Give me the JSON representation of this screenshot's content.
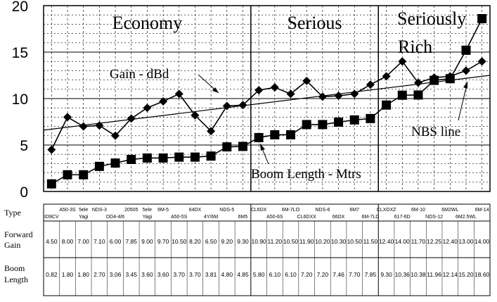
{
  "chart_data": {
    "type": "line",
    "ylim": [
      0,
      20
    ],
    "yticks": [
      "0",
      "5",
      "10",
      "15",
      "20"
    ],
    "bands": [
      {
        "label": "Economy",
        "from": 0,
        "to": 13
      },
      {
        "label": "Serious",
        "from": 13,
        "to": 21
      },
      {
        "label": "Seriously Rich",
        "from": 21,
        "to": 26
      }
    ],
    "band_label_lines": {
      "rich_1": "Seriously",
      "rich_2": "Rich"
    },
    "annotations": {
      "gain": "Gain - dBd",
      "boom": "Boom Length - Mtrs",
      "nbs": "NBS line"
    },
    "table_headers": {
      "type": "Type",
      "gain_1": "Forward",
      "gain_2": "Gain",
      "boom_1": "Boom",
      "boom_2": "Length"
    },
    "types": [
      {
        "top": "",
        "bottom": "ID9CV"
      },
      {
        "top": "A50-3S",
        "bottom": ""
      },
      {
        "top": "5ele",
        "bottom": "Yagi"
      },
      {
        "top": "NDS-3",
        "bottom": ""
      },
      {
        "top": "",
        "bottom": "DD4-4/6"
      },
      {
        "top": "20505",
        "bottom": ""
      },
      {
        "top": "5ele",
        "bottom": "Yagi"
      },
      {
        "top": "6M-5",
        "bottom": ""
      },
      {
        "top": "",
        "bottom": "A50-5S"
      },
      {
        "top": "64DX",
        "bottom": ""
      },
      {
        "top": "",
        "bottom": "4Y/6M"
      },
      {
        "top": "NDS-5",
        "bottom": ""
      },
      {
        "top": "",
        "bottom": "6M5"
      },
      {
        "top": "CL6DX",
        "bottom": ""
      },
      {
        "top": "",
        "bottom": "A50-6S"
      },
      {
        "top": "6M-7LO",
        "bottom": ""
      },
      {
        "top": "",
        "bottom": "CL6DXX"
      },
      {
        "top": "NDS-6",
        "bottom": ""
      },
      {
        "top": "",
        "bottom": "66DX"
      },
      {
        "top": "6M7",
        "bottom": ""
      },
      {
        "top": "",
        "bottom": "6M-7LD"
      },
      {
        "top": "CLXDXZ",
        "bottom": ""
      },
      {
        "top": "",
        "bottom": "617-6D"
      },
      {
        "top": "6M-10",
        "bottom": ""
      },
      {
        "top": "",
        "bottom": "NDS-12"
      },
      {
        "top": "6M2WL",
        "bottom": ""
      },
      {
        "top": "",
        "bottom": "6M2.5WL"
      },
      {
        "top": "6M-14",
        "bottom": ""
      }
    ],
    "series": [
      {
        "name": "Gain - dBd",
        "values": [
          4.5,
          8.0,
          7.0,
          7.1,
          6.0,
          7.85,
          9.0,
          9.7,
          10.5,
          8.2,
          6.5,
          9.2,
          9.3,
          10.9,
          11.2,
          10.5,
          11.9,
          10.2,
          10.3,
          10.5,
          11.5,
          12.4,
          14.0,
          11.7,
          12.25,
          12.4,
          13.0,
          14.0
        ],
        "labels": [
          "4.50",
          "8.00",
          "7.00",
          "7.10",
          "6.00",
          "7.85",
          "9.00",
          "9.70",
          "10.50",
          "8.20",
          "6.50",
          "9.20",
          "9.30",
          "10.90",
          "11.20",
          "10.50",
          "11.90",
          "10.20",
          "10.30",
          "10.50",
          "11.50",
          "12.40",
          "14.00",
          "11.70",
          "12.25",
          "12.40",
          "13.00",
          "14.00"
        ]
      },
      {
        "name": "Boom Length - Mtrs",
        "values": [
          0.82,
          1.8,
          1.8,
          2.7,
          3.06,
          3.45,
          3.6,
          3.6,
          3.7,
          3.7,
          3.81,
          4.8,
          4.85,
          5.8,
          6.1,
          6.1,
          7.2,
          7.2,
          7.46,
          7.7,
          7.85,
          9.3,
          10.36,
          10.38,
          11.96,
          12.14,
          15.2,
          18.6
        ],
        "labels": [
          "0.82",
          "1.80",
          "1.80",
          "2.70",
          "3.06",
          "3.45",
          "3.60",
          "3.60",
          "3.70",
          "3.70",
          "3.81",
          "4.80",
          "4.85",
          "5.80",
          "6.10",
          "6.10",
          "7.20",
          "7.20",
          "7.46",
          "7.70",
          "7.85",
          "9.30",
          "10.36",
          "10.38",
          "11.96",
          "12.14",
          "15.20",
          "18.60"
        ]
      }
    ],
    "nbs_line": {
      "x": [
        0,
        28
      ],
      "y": [
        6.6,
        12.5
      ]
    }
  }
}
